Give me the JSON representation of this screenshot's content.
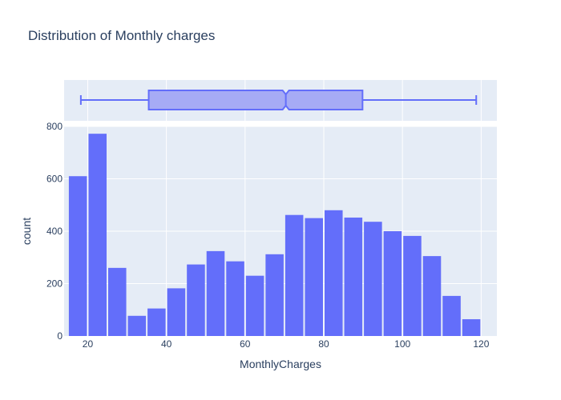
{
  "chart_data": {
    "type": "bar",
    "title": "Distribution of Monthly charges",
    "xlabel": "MonthlyCharges",
    "ylabel": "count",
    "xlim": [
      14,
      124
    ],
    "ylim": [
      0,
      800
    ],
    "x_ticks": [
      20,
      40,
      60,
      80,
      100,
      120
    ],
    "y_ticks": [
      0,
      200,
      400,
      600,
      800
    ],
    "bin_width": 5,
    "bins": [
      {
        "start": 15,
        "end": 20,
        "count": 610
      },
      {
        "start": 20,
        "end": 25,
        "count": 772
      },
      {
        "start": 25,
        "end": 30,
        "count": 260
      },
      {
        "start": 30,
        "end": 35,
        "count": 77
      },
      {
        "start": 35,
        "end": 40,
        "count": 105
      },
      {
        "start": 40,
        "end": 45,
        "count": 182
      },
      {
        "start": 45,
        "end": 50,
        "count": 273
      },
      {
        "start": 50,
        "end": 55,
        "count": 324
      },
      {
        "start": 55,
        "end": 60,
        "count": 285
      },
      {
        "start": 60,
        "end": 65,
        "count": 230
      },
      {
        "start": 65,
        "end": 70,
        "count": 312
      },
      {
        "start": 70,
        "end": 75,
        "count": 462
      },
      {
        "start": 75,
        "end": 80,
        "count": 450
      },
      {
        "start": 80,
        "end": 85,
        "count": 480
      },
      {
        "start": 85,
        "end": 90,
        "count": 452
      },
      {
        "start": 90,
        "end": 95,
        "count": 436
      },
      {
        "start": 95,
        "end": 100,
        "count": 400
      },
      {
        "start": 100,
        "end": 105,
        "count": 382
      },
      {
        "start": 105,
        "end": 110,
        "count": 305
      },
      {
        "start": 110,
        "end": 115,
        "count": 153
      },
      {
        "start": 115,
        "end": 120,
        "count": 64
      }
    ],
    "box": {
      "min": 18.25,
      "q1": 35.5,
      "median": 70.35,
      "q3": 89.85,
      "max": 118.75
    },
    "grid": true,
    "colors": {
      "bar": "#636efa",
      "box_fill": "#a6abf5",
      "box_line": "#636efa",
      "plot_bg": "#e5ecf6",
      "grid": "#ffffff",
      "text": "#2a3f5f"
    }
  }
}
